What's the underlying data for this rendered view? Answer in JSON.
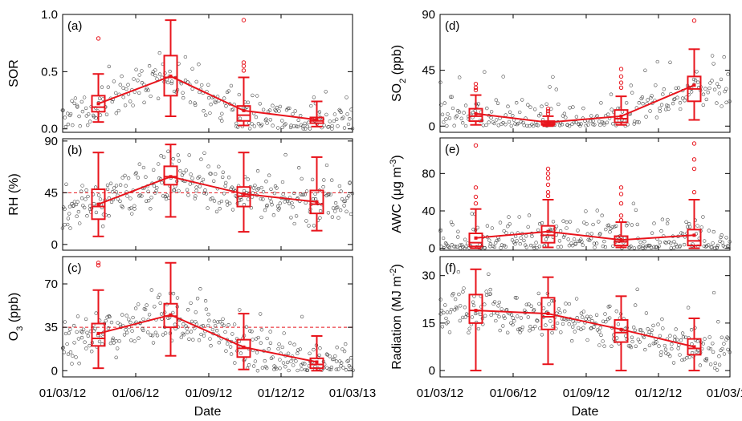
{
  "chart_data": [
    {
      "panel": "(a)",
      "type": "scatter+box",
      "ylabel": "SOR",
      "ylabel_sub": "",
      "ylabel_tail": "",
      "ylabel_sup": "",
      "ylabel_end": "",
      "ylim": [
        -0.03,
        1.0
      ],
      "yticks": [
        0.0,
        0.5,
        1.0
      ],
      "yticklabels": [
        "0.0",
        "0.5",
        "1.0"
      ],
      "ref_line": null,
      "scatter_stats": {
        "count": 240,
        "center": 0.2,
        "spread": 0.18,
        "noise": 0.12,
        "min": 0.0,
        "max": 0.96
      },
      "boxes": [
        {
          "x": "2012-04-15",
          "whisker_low": 0.06,
          "q1": 0.15,
          "median": 0.19,
          "mean": 0.22,
          "q3": 0.29,
          "whisker_high": 0.48,
          "outliers": [
            0.79
          ]
        },
        {
          "x": "2012-07-15",
          "whisker_low": 0.11,
          "q1": 0.29,
          "median": 0.45,
          "mean": 0.46,
          "q3": 0.64,
          "whisker_high": 0.95,
          "outliers": []
        },
        {
          "x": "2012-10-15",
          "whisker_low": 0.03,
          "q1": 0.07,
          "median": 0.12,
          "mean": 0.16,
          "q3": 0.2,
          "whisker_high": 0.45,
          "outliers": [
            0.51,
            0.55,
            0.58,
            0.95
          ]
        },
        {
          "x": "2013-01-15",
          "whisker_low": 0.02,
          "q1": 0.05,
          "median": 0.07,
          "mean": 0.08,
          "q3": 0.1,
          "whisker_high": 0.24,
          "outliers": []
        }
      ]
    },
    {
      "panel": "(b)",
      "type": "scatter+box",
      "ylabel": "RH (%)",
      "ylabel_sub": "",
      "ylabel_tail": "",
      "ylabel_sup": "",
      "ylabel_end": "",
      "ylim": [
        -5,
        92
      ],
      "yticks": [
        0,
        45,
        90
      ],
      "yticklabels": [
        "0",
        "45",
        "90"
      ],
      "ref_line": 45,
      "scatter_stats": {
        "count": 300,
        "center": 45,
        "spread": 14,
        "noise": 16,
        "min": 8,
        "max": 88
      },
      "boxes": [
        {
          "x": "2012-04-15",
          "whisker_low": 7,
          "q1": 22,
          "median": 33,
          "mean": 35,
          "q3": 48,
          "whisker_high": 80,
          "outliers": []
        },
        {
          "x": "2012-07-15",
          "whisker_low": 24,
          "q1": 52,
          "median": 59,
          "mean": 59,
          "q3": 68,
          "whisker_high": 87,
          "outliers": []
        },
        {
          "x": "2012-10-15",
          "whisker_low": 11,
          "q1": 33,
          "median": 42,
          "mean": 44,
          "q3": 50,
          "whisker_high": 80,
          "outliers": []
        },
        {
          "x": "2013-01-15",
          "whisker_low": 12,
          "q1": 27,
          "median": 35,
          "mean": 37,
          "q3": 47,
          "whisker_high": 76,
          "outliers": []
        }
      ]
    },
    {
      "panel": "(c)",
      "type": "scatter+box",
      "ylabel": "O",
      "ylabel_sub": "3",
      "ylabel_tail": " (ppb)",
      "ylabel_sup": "",
      "ylabel_end": "",
      "ylim": [
        -5,
        92
      ],
      "yticks": [
        0,
        35,
        70
      ],
      "yticklabels": [
        "0",
        "35",
        "70"
      ],
      "ref_line": 35,
      "scatter_stats": {
        "count": 300,
        "center": 30,
        "spread": 20,
        "noise": 14,
        "min": 0,
        "max": 90
      },
      "boxes": [
        {
          "x": "2012-04-15",
          "whisker_low": 2,
          "q1": 20,
          "median": 26,
          "mean": 30,
          "q3": 38,
          "whisker_high": 65,
          "outliers": [
            85,
            87
          ]
        },
        {
          "x": "2012-07-15",
          "whisker_low": 12,
          "q1": 35,
          "median": 44,
          "mean": 45,
          "q3": 54,
          "whisker_high": 87,
          "outliers": []
        },
        {
          "x": "2012-10-15",
          "whisker_low": 1,
          "q1": 11,
          "median": 18,
          "mean": 19,
          "q3": 25,
          "whisker_high": 46,
          "outliers": []
        },
        {
          "x": "2013-01-15",
          "whisker_low": 0,
          "q1": 2,
          "median": 5,
          "mean": 7,
          "q3": 10,
          "whisker_high": 28,
          "outliers": []
        }
      ]
    },
    {
      "panel": "(d)",
      "type": "scatter+box",
      "ylabel": "SO",
      "ylabel_sub": "2",
      "ylabel_tail": " (ppb)",
      "ylabel_sup": "",
      "ylabel_end": "",
      "ylim": [
        -5,
        90
      ],
      "yticks": [
        0,
        45,
        90
      ],
      "yticklabels": [
        "0",
        "45",
        "90"
      ],
      "ref_line": null,
      "scatter_stats": {
        "count": 240,
        "center": 12,
        "spread": 22,
        "noise": 10,
        "min": 0,
        "max": 84
      },
      "boxes": [
        {
          "x": "2012-04-15",
          "whisker_low": 1,
          "q1": 4,
          "median": 8,
          "mean": 10,
          "q3": 14,
          "whisker_high": 25,
          "outliers": [
            29,
            31,
            34
          ]
        },
        {
          "x": "2012-07-15",
          "whisker_low": 0,
          "q1": 1,
          "median": 2,
          "mean": 3,
          "q3": 4,
          "whisker_high": 8,
          "outliers": [
            10,
            12,
            14
          ]
        },
        {
          "x": "2012-10-15",
          "whisker_low": 1,
          "q1": 3,
          "median": 6,
          "mean": 8,
          "q3": 13,
          "whisker_high": 24,
          "outliers": [
            31,
            35,
            40,
            46
          ]
        },
        {
          "x": "2013-01-15",
          "whisker_low": 5,
          "q1": 20,
          "median": 30,
          "mean": 33,
          "q3": 40,
          "whisker_high": 62,
          "outliers": [
            85
          ]
        }
      ]
    },
    {
      "panel": "(e)",
      "type": "scatter+box",
      "ylabel": "AWC (μg m",
      "ylabel_sub": "",
      "ylabel_tail": "",
      "ylabel_sup": "-3",
      "ylabel_end": ")",
      "ylim": [
        -2,
        118
      ],
      "yticks": [
        0,
        40,
        80
      ],
      "yticklabels": [
        "0",
        "40",
        "80"
      ],
      "ref_line": null,
      "scatter_stats": {
        "count": 260,
        "center": 8,
        "spread": 12,
        "noise": 18,
        "min": 0,
        "max": 112
      },
      "boxes": [
        {
          "x": "2012-04-15",
          "whisker_low": 0,
          "q1": 2,
          "median": 6,
          "mean": 11,
          "q3": 16,
          "whisker_high": 42,
          "outliers": [
            48,
            55,
            65,
            110
          ]
        },
        {
          "x": "2012-07-15",
          "whisker_low": 1,
          "q1": 6,
          "median": 14,
          "mean": 18,
          "q3": 24,
          "whisker_high": 52,
          "outliers": [
            56,
            60,
            68,
            75,
            80,
            85
          ]
        },
        {
          "x": "2012-10-15",
          "whisker_low": 1,
          "q1": 3,
          "median": 7,
          "mean": 9,
          "q3": 13,
          "whisker_high": 28,
          "outliers": [
            30,
            35,
            48,
            58,
            65
          ]
        },
        {
          "x": "2013-01-15",
          "whisker_low": 0,
          "q1": 3,
          "median": 8,
          "mean": 14,
          "q3": 20,
          "whisker_high": 52,
          "outliers": [
            60,
            85,
            95,
            112
          ]
        }
      ]
    },
    {
      "panel": "(f)",
      "type": "scatter+box",
      "ylabel": "Radiation (MJ m",
      "ylabel_sub": "",
      "ylabel_tail": "",
      "ylabel_sup": "-2",
      "ylabel_end": ")",
      "ylim": [
        -2,
        36
      ],
      "yticks": [
        0,
        15,
        30
      ],
      "yticklabels": [
        "0",
        "15",
        "30"
      ],
      "ref_line": null,
      "scatter_stats": {
        "count": 300,
        "center": 15,
        "spread": 7,
        "noise": 5,
        "min": 0,
        "max": 33
      },
      "boxes": [
        {
          "x": "2012-04-15",
          "whisker_low": 0,
          "q1": 15,
          "median": 19,
          "mean": 19,
          "q3": 24,
          "whisker_high": 32,
          "outliers": []
        },
        {
          "x": "2012-07-15",
          "whisker_low": 2,
          "q1": 13,
          "median": 17,
          "mean": 18,
          "q3": 23,
          "whisker_high": 29.5,
          "outliers": []
        },
        {
          "x": "2012-10-15",
          "whisker_low": 0,
          "q1": 9,
          "median": 12,
          "mean": 13,
          "q3": 16,
          "whisker_high": 23.5,
          "outliers": []
        },
        {
          "x": "2013-01-15",
          "whisker_low": 0,
          "q1": 5,
          "median": 7,
          "mean": 7.5,
          "q3": 10,
          "whisker_high": 16.5,
          "outliers": []
        }
      ]
    }
  ],
  "x_axis": {
    "range": [
      "2012-03-01",
      "2013-03-01"
    ],
    "ticks": [
      "2012-03-01",
      "2012-06-01",
      "2012-09-01",
      "2012-12-01",
      "2013-03-01"
    ],
    "tick_labels": [
      "01/03/12",
      "01/06/12",
      "01/09/12",
      "01/12/12",
      "01/03/13"
    ],
    "xlabel": "Date"
  },
  "colors": {
    "box": "#e8141c",
    "scatter": "#3a3a3a",
    "ref_line": "#e8141c",
    "axis": "#000000"
  }
}
